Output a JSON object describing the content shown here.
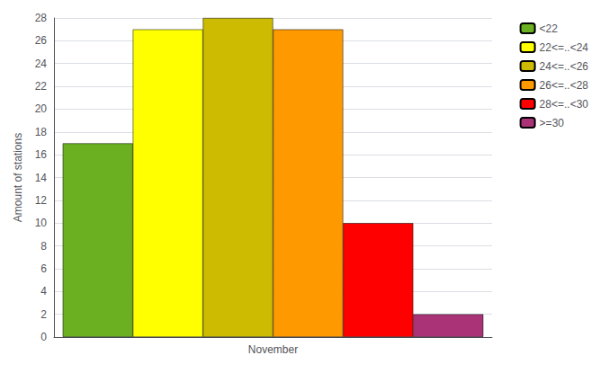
{
  "chart_data": {
    "type": "bar",
    "categories": [
      "November"
    ],
    "series": [
      {
        "name": "<22",
        "color": "#6ab020",
        "values": [
          17
        ]
      },
      {
        "name": "22<=..<24",
        "color": "#ffff00",
        "values": [
          27
        ]
      },
      {
        "name": "24<=..<26",
        "color": "#ccbb00",
        "values": [
          28
        ]
      },
      {
        "name": "26<=..<28",
        "color": "#ff9900",
        "values": [
          27
        ]
      },
      {
        "name": "28<=..<30",
        "color": "#ff0000",
        "values": [
          10
        ]
      },
      {
        "name": ">=30",
        "color": "#aa3377",
        "values": [
          2
        ]
      }
    ],
    "ylabel": "Amount of stations",
    "ylim": [
      0,
      28
    ],
    "yticks": [
      0,
      2,
      4,
      6,
      8,
      10,
      12,
      14,
      16,
      18,
      20,
      22,
      24,
      26,
      28
    ],
    "grid": true,
    "legend": "upper right"
  }
}
